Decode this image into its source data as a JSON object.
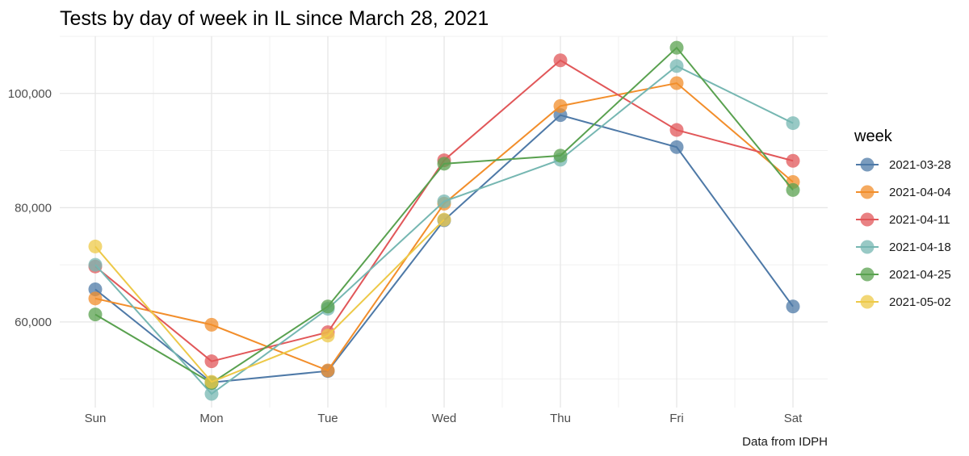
{
  "chart_data": {
    "type": "line",
    "title": "Tests by day of week in IL since March 28, 2021",
    "caption": "Data from IDPH",
    "xlabel": "",
    "ylabel": "",
    "categories": [
      "Sun",
      "Mon",
      "Tue",
      "Wed",
      "Thu",
      "Fri",
      "Sat"
    ],
    "ylim": [
      45000,
      110000
    ],
    "y_ticks": [
      60000,
      80000,
      100000
    ],
    "y_tick_labels": [
      "60,000",
      "80,000",
      "100,000"
    ],
    "grid": true,
    "legend": {
      "title": "week",
      "position": "right"
    },
    "series": [
      {
        "name": "2021-03-28",
        "color": "#4e79a7",
        "values": [
          65700,
          49400,
          51400,
          77800,
          96200,
          90600,
          62700
        ]
      },
      {
        "name": "2021-04-04",
        "color": "#f28e2b",
        "values": [
          64100,
          59500,
          51500,
          80700,
          97800,
          101800,
          84500
        ]
      },
      {
        "name": "2021-04-11",
        "color": "#e15759",
        "values": [
          69700,
          53100,
          58200,
          88300,
          105800,
          93600,
          88200
        ]
      },
      {
        "name": "2021-04-18",
        "color": "#76b7b2",
        "values": [
          70000,
          47400,
          62300,
          81100,
          88400,
          104800,
          94800
        ]
      },
      {
        "name": "2021-04-25",
        "color": "#59a14f",
        "values": [
          61300,
          49300,
          62700,
          87700,
          89100,
          108000,
          83100
        ]
      },
      {
        "name": "2021-05-02",
        "color": "#edc948",
        "values": [
          73200,
          49500,
          57600,
          77900,
          null,
          null,
          null
        ]
      }
    ]
  }
}
